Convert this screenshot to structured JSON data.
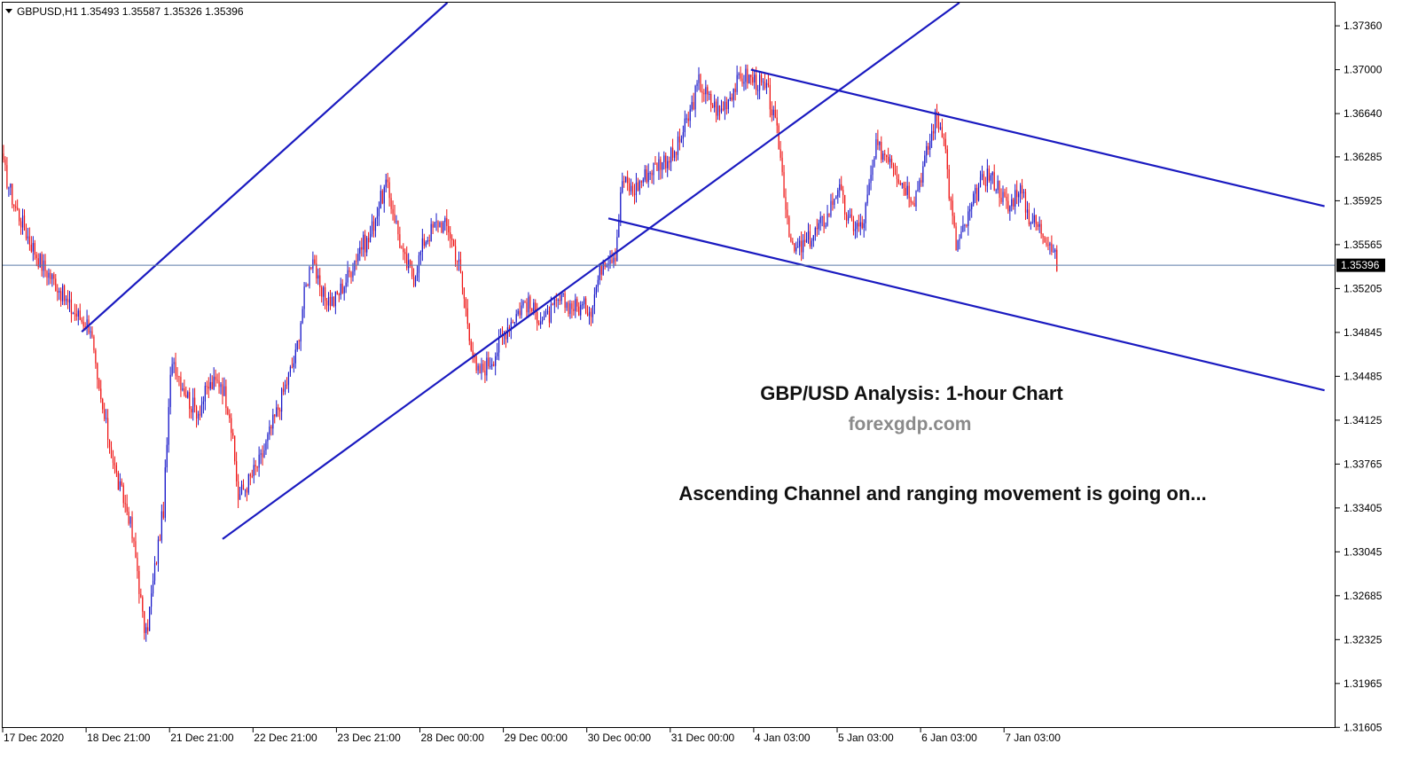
{
  "header": {
    "symbol": "GBPUSD,H1",
    "ohlc": "1.35493 1.35587 1.35326 1.35396"
  },
  "annotations": {
    "title": "GBP/USD Analysis: 1-hour Chart",
    "site": "forexgdp.com",
    "note": "Ascending Channel and ranging movement is going on..."
  },
  "colors": {
    "bull_candle": "#1515c8",
    "bear_candle": "#ee1111",
    "trendline": "#1a1ac0",
    "current_price_line": "#5a7aa8",
    "price_tag_bg": "#000000",
    "price_tag_text": "#ffffff"
  },
  "chart_data": {
    "type": "candlestick",
    "symbol": "GBPUSD",
    "timeframe": "H1",
    "ylim": [
      1.316,
      1.3755
    ],
    "y_ticks": [
      "1.37360",
      "1.37000",
      "1.36640",
      "1.36285",
      "1.35925",
      "1.35565",
      "1.35205",
      "1.34845",
      "1.34485",
      "1.34125",
      "1.33765",
      "1.33405",
      "1.33045",
      "1.32685",
      "1.32325",
      "1.31965",
      "1.31605"
    ],
    "x_ticks": [
      "17 Dec 2020",
      "18 Dec 21:00",
      "21 Dec 21:00",
      "22 Dec 21:00",
      "23 Dec 21:00",
      "28 Dec 00:00",
      "29 Dec 00:00",
      "30 Dec 00:00",
      "31 Dec 00:00",
      "4 Jan 03:00",
      "5 Jan 03:00",
      "6 Jan 03:00",
      "7 Jan 03:00"
    ],
    "current_price": "1.35396",
    "anchors": [
      [
        0,
        1.362
      ],
      [
        6,
        1.359
      ],
      [
        15,
        1.356
      ],
      [
        22,
        1.354
      ],
      [
        30,
        1.3525
      ],
      [
        38,
        1.3505
      ],
      [
        45,
        1.3495
      ],
      [
        50,
        1.349
      ],
      [
        54,
        1.344
      ],
      [
        60,
        1.34
      ],
      [
        66,
        1.336
      ],
      [
        72,
        1.3335
      ],
      [
        77,
        1.329
      ],
      [
        80,
        1.325
      ],
      [
        82,
        1.3235
      ],
      [
        87,
        1.329
      ],
      [
        92,
        1.334
      ],
      [
        96,
        1.3445
      ],
      [
        97,
        1.3465
      ],
      [
        102,
        1.3445
      ],
      [
        108,
        1.3425
      ],
      [
        112,
        1.342
      ],
      [
        118,
        1.344
      ],
      [
        125,
        1.3445
      ],
      [
        130,
        1.342
      ],
      [
        135,
        1.335
      ],
      [
        140,
        1.336
      ],
      [
        148,
        1.338
      ],
      [
        155,
        1.341
      ],
      [
        162,
        1.344
      ],
      [
        168,
        1.3465
      ],
      [
        173,
        1.3515
      ],
      [
        178,
        1.355
      ],
      [
        182,
        1.3515
      ],
      [
        190,
        1.351
      ],
      [
        198,
        1.353
      ],
      [
        205,
        1.3555
      ],
      [
        210,
        1.356
      ],
      [
        215,
        1.3585
      ],
      [
        220,
        1.3605
      ],
      [
        225,
        1.358
      ],
      [
        230,
        1.3545
      ],
      [
        236,
        1.353
      ],
      [
        242,
        1.356
      ],
      [
        250,
        1.3575
      ],
      [
        256,
        1.357
      ],
      [
        262,
        1.354
      ],
      [
        268,
        1.3485
      ],
      [
        272,
        1.345
      ],
      [
        276,
        1.3455
      ],
      [
        282,
        1.3465
      ],
      [
        290,
        1.349
      ],
      [
        300,
        1.351
      ],
      [
        306,
        1.35
      ],
      [
        312,
        1.3495
      ],
      [
        320,
        1.351
      ],
      [
        330,
        1.3505
      ],
      [
        338,
        1.3505
      ],
      [
        345,
        1.3545
      ],
      [
        352,
        1.355
      ],
      [
        356,
        1.361
      ],
      [
        362,
        1.36
      ],
      [
        370,
        1.3615
      ],
      [
        378,
        1.3625
      ],
      [
        386,
        1.363
      ],
      [
        394,
        1.366
      ],
      [
        400,
        1.369
      ],
      [
        406,
        1.3675
      ],
      [
        412,
        1.3665
      ],
      [
        420,
        1.3685
      ],
      [
        426,
        1.3695
      ],
      [
        434,
        1.369
      ],
      [
        440,
        1.368
      ],
      [
        446,
        1.364
      ],
      [
        450,
        1.359
      ],
      [
        454,
        1.355
      ],
      [
        460,
        1.3555
      ],
      [
        466,
        1.3565
      ],
      [
        474,
        1.358
      ],
      [
        480,
        1.3605
      ],
      [
        486,
        1.3575
      ],
      [
        494,
        1.357
      ],
      [
        502,
        1.3635
      ],
      [
        510,
        1.363
      ],
      [
        516,
        1.361
      ],
      [
        524,
        1.3595
      ],
      [
        530,
        1.3625
      ],
      [
        536,
        1.366
      ],
      [
        541,
        1.365
      ],
      [
        544,
        1.36
      ],
      [
        548,
        1.3555
      ],
      [
        553,
        1.357
      ],
      [
        560,
        1.36
      ],
      [
        566,
        1.3615
      ],
      [
        572,
        1.3605
      ],
      [
        578,
        1.3585
      ],
      [
        584,
        1.3605
      ],
      [
        590,
        1.358
      ],
      [
        596,
        1.357
      ],
      [
        602,
        1.356
      ],
      [
        606,
        1.354
      ]
    ],
    "trendlines": [
      {
        "name": "upper-1",
        "from": [
          45,
          1.3485
        ],
        "to": [
          306,
          1.382
        ]
      },
      {
        "name": "lower-1",
        "from": [
          126,
          1.3315
        ],
        "to": [
          680,
          1.389
        ]
      },
      {
        "name": "upper-2",
        "from": [
          430,
          1.37
        ],
        "to": [
          760,
          1.3588
        ]
      },
      {
        "name": "lower-2",
        "from": [
          348,
          1.3578
        ],
        "to": [
          760,
          1.3437
        ]
      }
    ]
  }
}
